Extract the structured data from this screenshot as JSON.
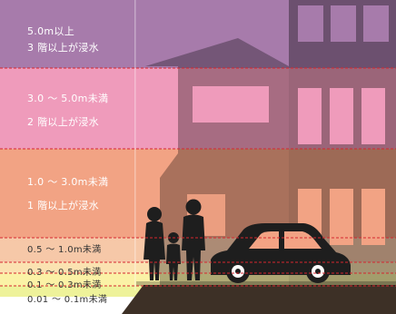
{
  "levels": [
    {
      "line1": "5.0m以上",
      "line2": "3 階以上が浸水",
      "color": "#a77bab"
    },
    {
      "line1": "3.0 ～ 5.0m未満",
      "line2": "2 階以上が浸水",
      "color": "#ef9bbb"
    },
    {
      "line1": "1.0 ～ 3.0m未満",
      "line2": "1 階以上が浸水",
      "color": "#f2a384"
    },
    {
      "line1": "0.5 ～ 1.0m未満",
      "color": "#f6c8a8"
    },
    {
      "line1": "0.3 ～ 0.5m未満",
      "color": "#fbe2b1"
    },
    {
      "line1": "0.1 ～ 0.3m未満",
      "color": "#fbf2a6"
    },
    {
      "line1": "0.01 ～ 0.1m未満",
      "color": "#eef29a"
    }
  ],
  "colors": {
    "silhouette": "#1e1e1e",
    "ground": "#3d3026",
    "threshold_line": "#d6272f",
    "building_shade": "#000000"
  }
}
